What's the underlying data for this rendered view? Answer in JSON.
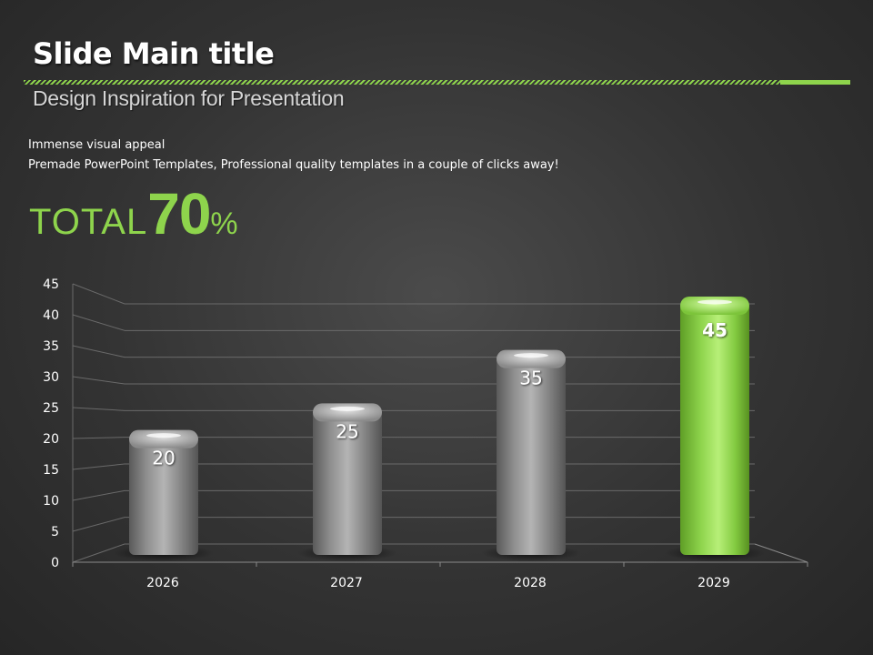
{
  "slide": {
    "title": "Slide Main title",
    "subtitle": "Design Inspiration for Presentation",
    "line1": "Immense visual appeal",
    "line2": "Premade PowerPoint Templates, Professional quality templates in a couple of clicks away!",
    "total_label": "TOTAL",
    "total_value": "70",
    "total_unit": "%",
    "accent_color": "#8ed44c"
  },
  "chart_data": {
    "type": "bar",
    "categories": [
      "2026",
      "2027",
      "2028",
      "2029"
    ],
    "values": [
      20,
      25,
      35,
      45
    ],
    "data_labels": [
      "20",
      "25",
      "35",
      "45"
    ],
    "highlight_index": 3,
    "ylim": [
      0,
      45
    ],
    "yticks": [
      0,
      5,
      10,
      15,
      20,
      25,
      30,
      35,
      40,
      45
    ],
    "grid": true,
    "colors": {
      "bar": "#8a8a8a",
      "highlight": "#8ed44c"
    }
  }
}
